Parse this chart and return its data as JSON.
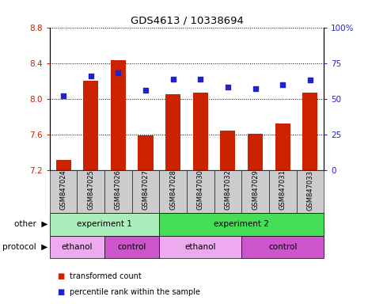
{
  "title": "GDS4613 / 10338694",
  "samples": [
    "GSM847024",
    "GSM847025",
    "GSM847026",
    "GSM847027",
    "GSM847028",
    "GSM847030",
    "GSM847032",
    "GSM847029",
    "GSM847031",
    "GSM847033"
  ],
  "bar_values": [
    7.32,
    8.2,
    8.43,
    7.59,
    8.05,
    8.07,
    7.64,
    7.61,
    7.72,
    8.07
  ],
  "bar_bottom": 7.2,
  "blue_dots": [
    52,
    66,
    68,
    56,
    64,
    64,
    58,
    57,
    60,
    63
  ],
  "ylim_left": [
    7.2,
    8.8
  ],
  "ylim_right": [
    0,
    100
  ],
  "yticks_left": [
    7.2,
    7.6,
    8.0,
    8.4,
    8.8
  ],
  "yticks_right": [
    0,
    25,
    50,
    75,
    100
  ],
  "bar_color": "#cc2200",
  "dot_color": "#2222cc",
  "ax_label_color_left": "#cc2200",
  "ax_label_color_right": "#2222cc",
  "other_row": [
    {
      "label": "experiment 1",
      "start": 0,
      "end": 4,
      "color": "#aaeebb"
    },
    {
      "label": "experiment 2",
      "start": 4,
      "end": 10,
      "color": "#44dd55"
    }
  ],
  "protocol_row": [
    {
      "label": "ethanol",
      "start": 0,
      "end": 2,
      "color": "#eeaaee"
    },
    {
      "label": "control",
      "start": 2,
      "end": 4,
      "color": "#cc55cc"
    },
    {
      "label": "ethanol",
      "start": 4,
      "end": 7,
      "color": "#eeaaee"
    },
    {
      "label": "control",
      "start": 7,
      "end": 10,
      "color": "#cc55cc"
    }
  ],
  "legend_items": [
    {
      "label": "transformed count",
      "color": "#cc2200"
    },
    {
      "label": "percentile rank within the sample",
      "color": "#2222cc"
    }
  ],
  "tick_bg_color": "#cccccc",
  "fig_bg": "#ffffff"
}
